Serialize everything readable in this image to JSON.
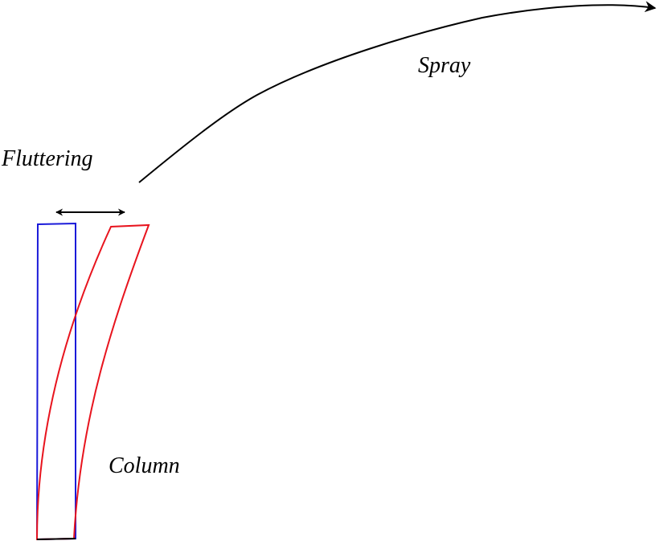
{
  "labels": {
    "fluttering": "Fluttering",
    "spray": "Spray",
    "column": "Column"
  },
  "colors": {
    "undeformed_column": "#1a1ad9",
    "deformed_column": "#e8141e",
    "arrows": "#000000",
    "background": "#ffffff"
  }
}
